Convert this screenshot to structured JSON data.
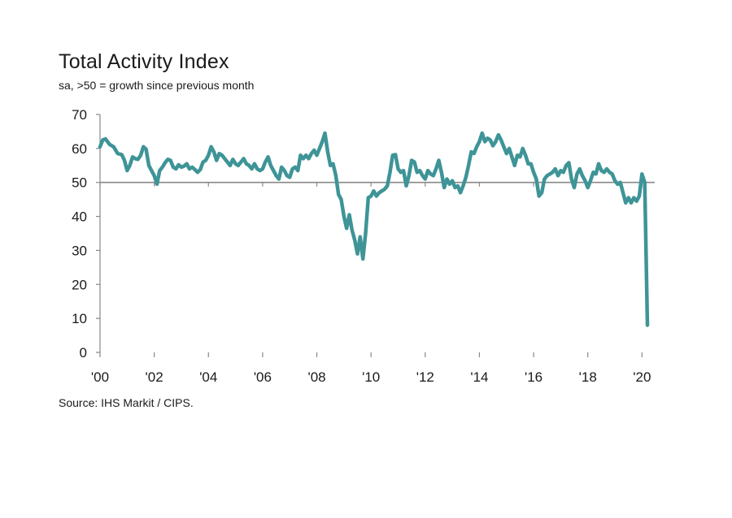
{
  "chart_data": {
    "type": "line",
    "title": "Total Activity Index",
    "subtitle": "sa, >50 = growth since previous month",
    "source": "Source: IHS Markit / CIPS.",
    "xlabel": "",
    "ylabel": "",
    "ylim": [
      0,
      70
    ],
    "xlim": [
      2000,
      2020.5
    ],
    "y_ticks": [
      0,
      10,
      20,
      30,
      40,
      50,
      60,
      70
    ],
    "x_ticks": [
      {
        "value": 2000,
        "label": "'00"
      },
      {
        "value": 2002,
        "label": "'02"
      },
      {
        "value": 2004,
        "label": "'04"
      },
      {
        "value": 2006,
        "label": "'06"
      },
      {
        "value": 2008,
        "label": "'08"
      },
      {
        "value": 2010,
        "label": "'10"
      },
      {
        "value": 2012,
        "label": "'12"
      },
      {
        "value": 2014,
        "label": "'14"
      },
      {
        "value": 2016,
        "label": "'16"
      },
      {
        "value": 2018,
        "label": "'18"
      },
      {
        "value": 2020,
        "label": "'20"
      }
    ],
    "reference_line": 50,
    "grid": false,
    "line_color": "#3e9497",
    "reference_color": "#888888",
    "series": [
      {
        "x": [
          2000.0,
          2000.1,
          2000.2,
          2000.35,
          2000.5,
          2000.65,
          2000.8,
          2000.9,
          2001.0,
          2001.1,
          2001.2,
          2001.3,
          2001.4,
          2001.5,
          2001.6,
          2001.7,
          2001.8,
          2001.9,
          2002.0,
          2002.1,
          2002.2,
          2002.3,
          2002.4,
          2002.5,
          2002.6,
          2002.7,
          2002.8,
          2002.9,
          2003.0,
          2003.1,
          2003.2,
          2003.3,
          2003.4,
          2003.5,
          2003.6,
          2003.7,
          2003.8,
          2003.9,
          2004.0,
          2004.1,
          2004.2,
          2004.3,
          2004.4,
          2004.5,
          2004.6,
          2004.7,
          2004.8,
          2004.9,
          2005.0,
          2005.1,
          2005.2,
          2005.3,
          2005.4,
          2005.5,
          2005.6,
          2005.7,
          2005.8,
          2005.9,
          2006.0,
          2006.1,
          2006.2,
          2006.3,
          2006.4,
          2006.5,
          2006.6,
          2006.7,
          2006.8,
          2006.9,
          2007.0,
          2007.1,
          2007.2,
          2007.3,
          2007.4,
          2007.5,
          2007.6,
          2007.7,
          2007.8,
          2007.9,
          2008.0,
          2008.1,
          2008.2,
          2008.3,
          2008.4,
          2008.5,
          2008.6,
          2008.7,
          2008.8,
          2008.9,
          2009.0,
          2009.1,
          2009.2,
          2009.3,
          2009.4,
          2009.5,
          2009.6,
          2009.7,
          2009.8,
          2009.9,
          2010.0,
          2010.1,
          2010.2,
          2010.3,
          2010.4,
          2010.5,
          2010.6,
          2010.7,
          2010.8,
          2010.9,
          2011.0,
          2011.1,
          2011.2,
          2011.3,
          2011.4,
          2011.5,
          2011.6,
          2011.7,
          2011.8,
          2011.9,
          2012.0,
          2012.1,
          2012.2,
          2012.3,
          2012.4,
          2012.5,
          2012.6,
          2012.7,
          2012.8,
          2012.9,
          2013.0,
          2013.1,
          2013.2,
          2013.3,
          2013.4,
          2013.5,
          2013.6,
          2013.7,
          2013.8,
          2013.9,
          2014.0,
          2014.1,
          2014.2,
          2014.3,
          2014.4,
          2014.5,
          2014.6,
          2014.7,
          2014.8,
          2014.9,
          2015.0,
          2015.1,
          2015.2,
          2015.3,
          2015.4,
          2015.5,
          2015.6,
          2015.7,
          2015.8,
          2015.9,
          2016.0,
          2016.1,
          2016.2,
          2016.3,
          2016.4,
          2016.5,
          2016.6,
          2016.7,
          2016.8,
          2016.9,
          2017.0,
          2017.1,
          2017.2,
          2017.3,
          2017.4,
          2017.5,
          2017.6,
          2017.7,
          2017.8,
          2017.9,
          2018.0,
          2018.1,
          2018.2,
          2018.3,
          2018.4,
          2018.5,
          2018.6,
          2018.7,
          2018.8,
          2018.9,
          2019.0,
          2019.1,
          2019.2,
          2019.3,
          2019.4,
          2019.5,
          2019.6,
          2019.7,
          2019.8,
          2019.9,
          2020.0,
          2020.1,
          2020.2
        ],
        "values": [
          60.5,
          62.5,
          62.8,
          61.2,
          60.5,
          58.5,
          58.2,
          56.5,
          53.5,
          55.0,
          57.5,
          57.0,
          56.8,
          58.0,
          60.5,
          59.8,
          55.0,
          53.5,
          52.0,
          49.5,
          53.5,
          54.5,
          55.8,
          56.8,
          56.5,
          54.5,
          54.0,
          55.2,
          54.5,
          54.8,
          55.5,
          54.0,
          54.5,
          53.8,
          53.0,
          53.8,
          56.0,
          56.5,
          58.0,
          60.5,
          59.0,
          56.5,
          58.5,
          58.0,
          57.0,
          56.0,
          55.0,
          56.8,
          55.5,
          55.0,
          56.0,
          57.0,
          55.5,
          55.0,
          54.0,
          55.5,
          54.0,
          53.5,
          54.0,
          56.0,
          57.5,
          55.0,
          53.5,
          52.0,
          51.0,
          54.5,
          53.5,
          52.0,
          51.5,
          54.0,
          54.5,
          53.5,
          58.0,
          57.0,
          58.0,
          57.0,
          58.5,
          59.5,
          58.0,
          60.0,
          62.0,
          64.5,
          59.0,
          55.0,
          55.5,
          52.0,
          46.5,
          45.0,
          40.0,
          36.5,
          40.5,
          36.0,
          33.0,
          29.0,
          34.0,
          27.5,
          35.0,
          45.5,
          46.0,
          47.5,
          46.0,
          47.0,
          47.5,
          48.0,
          49.0,
          53.0,
          58.0,
          58.2,
          54.0,
          53.0,
          53.5,
          49.0,
          52.0,
          56.5,
          56.0,
          53.0,
          53.5,
          52.0,
          51.0,
          53.5,
          52.5,
          52.0,
          54.0,
          56.5,
          53.0,
          48.5,
          51.0,
          49.5,
          50.5,
          48.5,
          49.0,
          47.0,
          49.0,
          51.5,
          55.0,
          59.0,
          58.5,
          60.5,
          62.0,
          64.5,
          62.0,
          63.0,
          62.5,
          60.8,
          62.0,
          64.0,
          62.5,
          60.5,
          58.5,
          60.0,
          57.5,
          55.0,
          58.0,
          57.5,
          60.0,
          58.0,
          55.5,
          55.5,
          53.0,
          51.0,
          46.0,
          47.0,
          51.0,
          52.0,
          52.5,
          53.0,
          54.0,
          52.0,
          53.5,
          53.0,
          55.0,
          55.8,
          51.0,
          48.5,
          52.5,
          54.0,
          52.0,
          50.5,
          48.5,
          50.5,
          53.0,
          52.5,
          55.5,
          53.5,
          53.0,
          54.0,
          53.0,
          52.5,
          50.5,
          49.5,
          50.0,
          47.0,
          44.0,
          45.5,
          44.0,
          45.5,
          44.5,
          46.0,
          52.5,
          50.0,
          8.0
        ]
      }
    ]
  }
}
